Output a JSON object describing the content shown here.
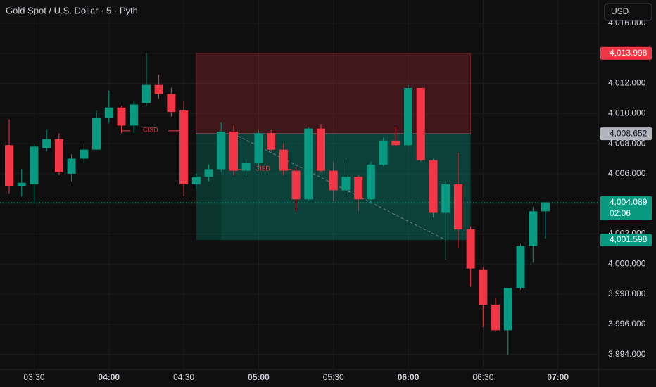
{
  "chart_data": {
    "type": "candlestick",
    "title": "Gold Spot / U.S. Dollar · 5 · Pyth",
    "currency": "USD",
    "categories": [
      null,
      null,
      "03:30",
      null,
      null,
      null,
      null,
      null,
      "04:00",
      null,
      null,
      null,
      null,
      null,
      "04:30",
      null,
      null,
      null,
      null,
      null,
      "05:00",
      null,
      null,
      null,
      null,
      null,
      "05:30",
      null,
      null,
      null,
      null,
      null,
      "06:00",
      null,
      null,
      null,
      null,
      null,
      "06:30",
      null,
      null,
      null,
      null,
      null,
      "07:00"
    ],
    "series": [
      {
        "open": [
          4007.9,
          4005.2,
          4005.3,
          4007.7,
          4008.3,
          4006.0,
          4007.0,
          4007.6,
          4009.7,
          4010.4,
          4009.2,
          4010.7,
          4011.9,
          4011.3,
          4010.2,
          4005.3,
          4005.8,
          4006.3,
          4008.8,
          4006.2,
          4006.7,
          4008.7,
          4007.6,
          4006.2,
          4004.3,
          4009.0,
          4006.2,
          4004.9,
          4005.8,
          4004.3,
          4006.6,
          4008.2,
          4007.9,
          4011.7,
          4006.9,
          4003.4,
          4005.3,
          4002.3,
          3999.6,
          3997.3,
          3995.6,
          3998.4,
          4001.2,
          4003.5,
          null
        ],
        "high": [
          4009.6,
          4006.3,
          4008.0,
          4008.9,
          4008.7,
          4007.3,
          4008.0,
          4010.2,
          4011.5,
          4010.5,
          4010.8,
          4014.0,
          4012.6,
          4011.7,
          4010.8,
          4006.0,
          4006.6,
          4009.4,
          4009.2,
          4007.0,
          4008.9,
          4008.9,
          4008.0,
          4006.4,
          4009.1,
          4009.3,
          4006.8,
          4006.8,
          4005.9,
          4006.8,
          4008.4,
          4009.1,
          4011.9,
          4011.7,
          4007.0,
          4005.5,
          4007.4,
          4002.5,
          3999.8,
          3997.7,
          3998.4,
          4001.3,
          4003.8,
          4004.1,
          null
        ],
        "low": [
          4004.7,
          4004.5,
          4004.0,
          4007.5,
          4005.9,
          4005.5,
          4006.7,
          4007.6,
          4009.4,
          4008.7,
          4008.7,
          4010.5,
          4011.0,
          4009.8,
          4004.5,
          4005.0,
          4005.5,
          4006.1,
          4005.9,
          4005.9,
          4006.3,
          4007.5,
          4005.9,
          4003.5,
          4004.2,
          4006.1,
          4004.2,
          4004.7,
          4003.5,
          4004.0,
          4006.5,
          4007.8,
          4007.8,
          4006.8,
          4003.1,
          4000.3,
          4001.1,
          3998.5,
          3995.8,
          3995.5,
          3994.0,
          3998.3,
          4000.1,
          4001.7,
          null
        ],
        "close": [
          4005.2,
          4005.4,
          4007.8,
          4008.3,
          4006.1,
          4007.0,
          4007.6,
          4009.7,
          4010.4,
          4009.2,
          4010.6,
          4011.9,
          4011.3,
          4010.1,
          4005.3,
          4005.8,
          4006.3,
          4008.8,
          4006.2,
          4006.7,
          4008.7,
          4007.6,
          4006.2,
          4004.3,
          4009.0,
          4006.2,
          4004.9,
          4005.8,
          4004.3,
          4006.6,
          4008.2,
          4007.9,
          4011.7,
          4006.9,
          4003.4,
          4005.3,
          4002.3,
          3999.7,
          3997.3,
          3995.6,
          3998.4,
          4001.2,
          4003.5,
          4004.1,
          null
        ]
      }
    ],
    "up_color": "#089981",
    "down_color": "#f23645",
    "ylim": [
      3993.0,
      4017.54
    ],
    "yticks": [
      {
        "value": 3994,
        "label": "3,994.000"
      },
      {
        "value": 3996,
        "label": "3,996.000"
      },
      {
        "value": 3998,
        "label": "3,998.000"
      },
      {
        "value": 4000,
        "label": "4,000.000"
      },
      {
        "value": 4002,
        "label": "4,002.000"
      },
      {
        "value": 4004,
        "label": "4,004.000"
      },
      {
        "value": 4006,
        "label": "4,006.000"
      },
      {
        "value": 4008,
        "label": "4,008.000"
      },
      {
        "value": 4010,
        "label": "4,010.000"
      },
      {
        "value": 4012,
        "label": "4,012.000"
      },
      {
        "value": 4014,
        "label": "4,014.000"
      },
      {
        "value": 4016,
        "label": "4,016.000"
      }
    ],
    "price_labels": [
      {
        "value": 4013.998,
        "label": "4,013.998",
        "color": "#f23645"
      },
      {
        "value": 4008.652,
        "label": "4,008.652",
        "color": "#b2b5be"
      },
      {
        "value": 4004.089,
        "label": "4,004.089",
        "color": "#089981",
        "countdown": "02:06"
      },
      {
        "value": 4001.598,
        "label": "4,001.598",
        "color": "#089981"
      }
    ],
    "annotations": [
      "CISD",
      "CISD"
    ],
    "grid": true
  }
}
